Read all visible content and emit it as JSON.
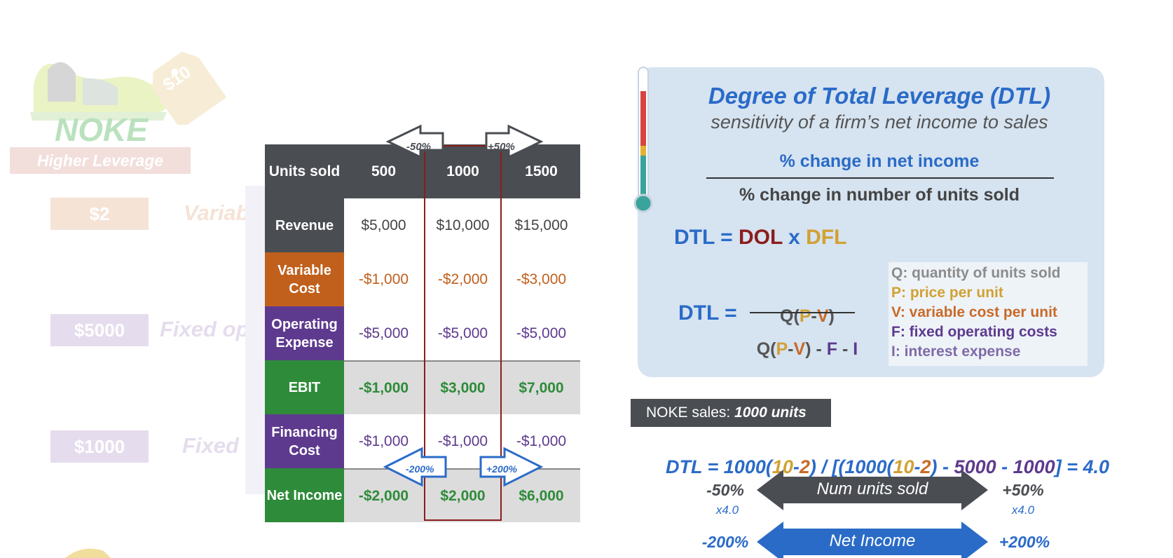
{
  "left": {
    "price_tag": "$10",
    "brand": "NOKE",
    "banner": "Higher Leverage",
    "rows": [
      {
        "chip": "$2",
        "label": "Variable",
        "color": "#e2b08a"
      },
      {
        "chip": "$5000",
        "label": "Fixed oper",
        "color": "#b49acb"
      },
      {
        "chip": "$1000",
        "label": "Fixed fin",
        "color": "#b49acb"
      }
    ]
  },
  "table": {
    "header": {
      "label": "Units sold",
      "cols": [
        "500",
        "1000",
        "1500"
      ]
    },
    "top_arrows": {
      "left": "-50%",
      "right": "+50%"
    },
    "bottom_arrows": {
      "left": "-200%",
      "right": "+200%"
    },
    "rows": [
      {
        "label": "Revenue",
        "values": [
          "$5,000",
          "$10,000",
          "$15,000"
        ],
        "label_bg": "#4a4d52",
        "value_color": "#444444",
        "bold": false,
        "row_bg": "#ffffff"
      },
      {
        "label": "Variable Cost",
        "values": [
          "-$1,000",
          "-$2,000",
          "-$3,000"
        ],
        "label_bg": "#c0601c",
        "value_color": "#c0601c",
        "bold": false,
        "row_bg": "#ffffff"
      },
      {
        "label": "Operating Expense",
        "values": [
          "-$5,000",
          "-$5,000",
          "-$5,000"
        ],
        "label_bg": "#5e3a8e",
        "value_color": "#5e3a8e",
        "bold": false,
        "row_bg": "#ffffff"
      },
      {
        "label": "EBIT",
        "values": [
          "-$1,000",
          "$3,000",
          "$7,000"
        ],
        "label_bg": "#2e8b3a",
        "value_color": "#2e8b3a",
        "bold": true,
        "row_bg": "#dcdcdc"
      },
      {
        "label": "Financing Cost",
        "values": [
          "-$1,000",
          "-$1,000",
          "-$1,000"
        ],
        "label_bg": "#5e3a8e",
        "value_color": "#5e3a8e",
        "bold": false,
        "row_bg": "#ffffff"
      },
      {
        "label": "Net Income",
        "values": [
          "-$2,000",
          "$2,000",
          "$6,000"
        ],
        "label_bg": "#2e8b3a",
        "value_color": "#2e8b3a",
        "bold": true,
        "row_bg": "#dcdcdc"
      }
    ]
  },
  "panel": {
    "title": "Degree of Total Leverage (DTL)",
    "subtitle": "sensitivity of a firm’s net income to sales",
    "numerator": "% change in net income",
    "denominator": "% change in number of units sold",
    "dtl_eq": {
      "lhs": "DTL = ",
      "dol": "DOL",
      "x": " x ",
      "dfl": "DFL"
    },
    "formula": {
      "lhs": "DTL =",
      "num": [
        "Q(",
        "P",
        "-",
        "V",
        ")"
      ],
      "den": [
        "Q(",
        "P",
        "-",
        "V",
        ") - ",
        "F",
        " - ",
        "I"
      ]
    },
    "legend": [
      {
        "text": "Q: quantity of units sold",
        "color": "#8c8c8c"
      },
      {
        "text": "P: price per unit",
        "color": "#d1a133"
      },
      {
        "text": "V: variable cost per unit",
        "color": "#c86a28"
      },
      {
        "text": "F: fixed operating costs",
        "color": "#5e3a8e"
      },
      {
        "text": "I: interest expense",
        "color": "#7f6aa8"
      }
    ]
  },
  "sales": {
    "badge_prefix": "NOKE sales: ",
    "badge_value": "1000 units",
    "calc": [
      "DTL = 1000(",
      "10",
      "-",
      "2",
      ") / [(1000(",
      "10",
      "-",
      "2",
      ") - ",
      "5000",
      " - ",
      "1000",
      "] = 4.0"
    ]
  },
  "arrows": {
    "units": {
      "label": "Num units sold",
      "left": "-50%",
      "right": "+50%",
      "left_mult": "x4.0",
      "right_mult": "x4.0"
    },
    "income": {
      "label": "Net Income",
      "left": "-200%",
      "right": "+200%"
    }
  }
}
